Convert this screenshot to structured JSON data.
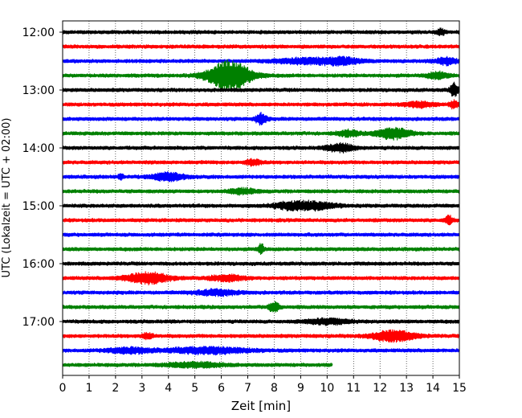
{
  "chart_data": {
    "type": "line",
    "title": "",
    "xlabel": "Zeit  [min]",
    "ylabel": "UTC (Lokalzeit = UTC + 02:00)",
    "xlim": [
      0,
      15
    ],
    "x_ticks": [
      "0",
      "1",
      "2",
      "3",
      "4",
      "5",
      "6",
      "7",
      "8",
      "9",
      "10",
      "11",
      "12",
      "13",
      "14",
      "15"
    ],
    "y_ticks": [
      "12:00",
      "13:00",
      "14:00",
      "15:00",
      "16:00",
      "17:00"
    ],
    "grid": "vertical dotted",
    "colors": {
      "black": "#000000",
      "red": "#ff0000",
      "blue": "#0000ff",
      "green": "#008000"
    },
    "traces": [
      {
        "start": "12:00",
        "color": "black",
        "end_min": 15,
        "events": [
          {
            "t": 14.3,
            "amp": 1.6,
            "w": 0.15
          }
        ]
      },
      {
        "start": "12:15",
        "color": "red",
        "end_min": 15,
        "events": []
      },
      {
        "start": "12:30",
        "color": "blue",
        "end_min": 15,
        "events": [
          {
            "t": 9.0,
            "amp": 1.3,
            "w": 1.0
          },
          {
            "t": 10.5,
            "amp": 1.8,
            "w": 0.8
          },
          {
            "t": 14.5,
            "amp": 1.8,
            "w": 0.4
          }
        ]
      },
      {
        "start": "12:45",
        "color": "green",
        "end_min": 15,
        "events": [
          {
            "t": 6.3,
            "amp": 8.0,
            "w": 0.8
          },
          {
            "t": 14.2,
            "amp": 1.8,
            "w": 0.4
          }
        ]
      },
      {
        "start": "13:00",
        "color": "black",
        "end_min": 15,
        "events": [
          {
            "t": 14.8,
            "amp": 3.5,
            "w": 0.15
          }
        ]
      },
      {
        "start": "13:15",
        "color": "red",
        "end_min": 15,
        "events": [
          {
            "t": 13.5,
            "amp": 1.5,
            "w": 0.5
          },
          {
            "t": 14.8,
            "amp": 2.0,
            "w": 0.15
          }
        ]
      },
      {
        "start": "13:30",
        "color": "blue",
        "end_min": 15,
        "events": [
          {
            "t": 7.5,
            "amp": 3.0,
            "w": 0.2
          }
        ]
      },
      {
        "start": "13:45",
        "color": "green",
        "end_min": 15,
        "events": [
          {
            "t": 12.5,
            "amp": 3.0,
            "w": 0.6
          },
          {
            "t": 10.8,
            "amp": 1.5,
            "w": 0.4
          }
        ]
      },
      {
        "start": "14:00",
        "color": "black",
        "end_min": 15,
        "events": [
          {
            "t": 10.5,
            "amp": 2.2,
            "w": 0.5
          }
        ]
      },
      {
        "start": "14:15",
        "color": "red",
        "end_min": 15,
        "events": [
          {
            "t": 7.2,
            "amp": 1.5,
            "w": 0.3
          }
        ]
      },
      {
        "start": "14:30",
        "color": "blue",
        "end_min": 15,
        "events": [
          {
            "t": 4.0,
            "amp": 2.0,
            "w": 0.6
          },
          {
            "t": 2.2,
            "amp": 1.5,
            "w": 0.1
          }
        ]
      },
      {
        "start": "14:45",
        "color": "green",
        "end_min": 15,
        "events": [
          {
            "t": 6.8,
            "amp": 1.4,
            "w": 0.5
          }
        ]
      },
      {
        "start": "15:00",
        "color": "black",
        "end_min": 15,
        "events": [
          {
            "t": 9.5,
            "amp": 2.0,
            "w": 0.8
          },
          {
            "t": 8.5,
            "amp": 1.5,
            "w": 0.6
          }
        ]
      },
      {
        "start": "15:15",
        "color": "red",
        "end_min": 15,
        "events": [
          {
            "t": 14.6,
            "amp": 2.2,
            "w": 0.15
          }
        ]
      },
      {
        "start": "15:30",
        "color": "blue",
        "end_min": 15,
        "events": []
      },
      {
        "start": "15:45",
        "color": "green",
        "end_min": 15,
        "events": [
          {
            "t": 7.5,
            "amp": 3.0,
            "w": 0.1
          }
        ]
      },
      {
        "start": "16:00",
        "color": "black",
        "end_min": 15,
        "events": []
      },
      {
        "start": "16:15",
        "color": "red",
        "end_min": 15,
        "events": [
          {
            "t": 3.2,
            "amp": 3.0,
            "w": 0.8
          },
          {
            "t": 6.2,
            "amp": 1.6,
            "w": 0.6
          }
        ]
      },
      {
        "start": "16:30",
        "color": "blue",
        "end_min": 15,
        "events": [
          {
            "t": 5.8,
            "amp": 1.4,
            "w": 0.8
          }
        ]
      },
      {
        "start": "16:45",
        "color": "green",
        "end_min": 15,
        "events": [
          {
            "t": 8.0,
            "amp": 2.5,
            "w": 0.2
          }
        ]
      },
      {
        "start": "17:00",
        "color": "black",
        "end_min": 15,
        "events": [
          {
            "t": 10.0,
            "amp": 1.4,
            "w": 0.8
          }
        ]
      },
      {
        "start": "17:15",
        "color": "red",
        "end_min": 15,
        "events": [
          {
            "t": 12.5,
            "amp": 2.8,
            "w": 0.8
          },
          {
            "t": 3.2,
            "amp": 1.5,
            "w": 0.2
          }
        ]
      },
      {
        "start": "17:30",
        "color": "blue",
        "end_min": 15,
        "events": [
          {
            "t": 5.5,
            "amp": 1.6,
            "w": 1.5
          },
          {
            "t": 2.5,
            "amp": 1.4,
            "w": 0.8
          }
        ]
      },
      {
        "start": "17:45",
        "color": "green",
        "end_min": 10.2,
        "events": [
          {
            "t": 5.0,
            "amp": 1.3,
            "w": 1.0
          }
        ]
      }
    ]
  }
}
